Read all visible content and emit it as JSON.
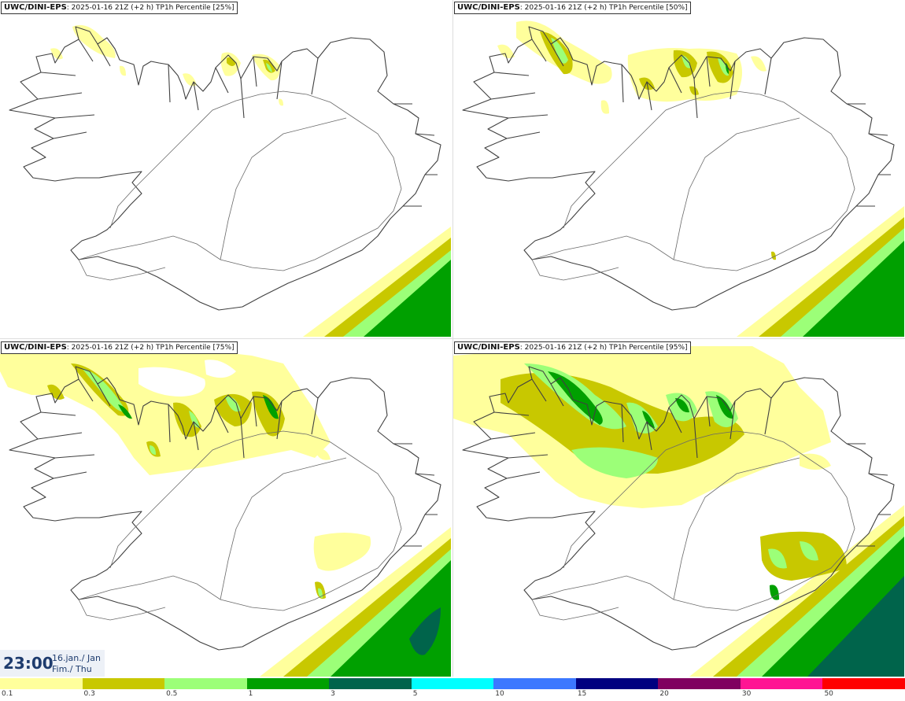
{
  "panels": [
    {
      "model": "UWC/DINI-EPS",
      "info": ": 2025-01-16 21Z (+2 h) TP1h Percentile [25%]"
    },
    {
      "model": "UWC/DINI-EPS",
      "info": ": 2025-01-16 21Z (+2 h) TP1h Percentile [50%]"
    },
    {
      "model": "UWC/DINI-EPS",
      "info": ": 2025-01-16 21Z (+2 h) TP1h Percentile [75%]"
    },
    {
      "model": "UWC/DINI-EPS",
      "info": ": 2025-01-16 21Z (+2 h) TP1h Percentile [95%]"
    }
  ],
  "time": {
    "clock": "23:00",
    "date_line": "16.jan./ Jan",
    "day_line": "Fim./ Thu"
  },
  "legend": {
    "colors": [
      "#ffff9c",
      "#c8c800",
      "#9cff78",
      "#00a000",
      "#00644b",
      "#00ffff",
      "#3c78ff",
      "#000080",
      "#800060",
      "#ff1493",
      "#ff0000"
    ],
    "ticks": [
      "0.1",
      "0.3",
      "0.5",
      "1",
      "3",
      "5",
      "10",
      "15",
      "20",
      "30",
      "50"
    ]
  },
  "map_colors": {
    "land_outline": "#404040",
    "roads": "#6a6a6a",
    "background": "#ffffff"
  }
}
